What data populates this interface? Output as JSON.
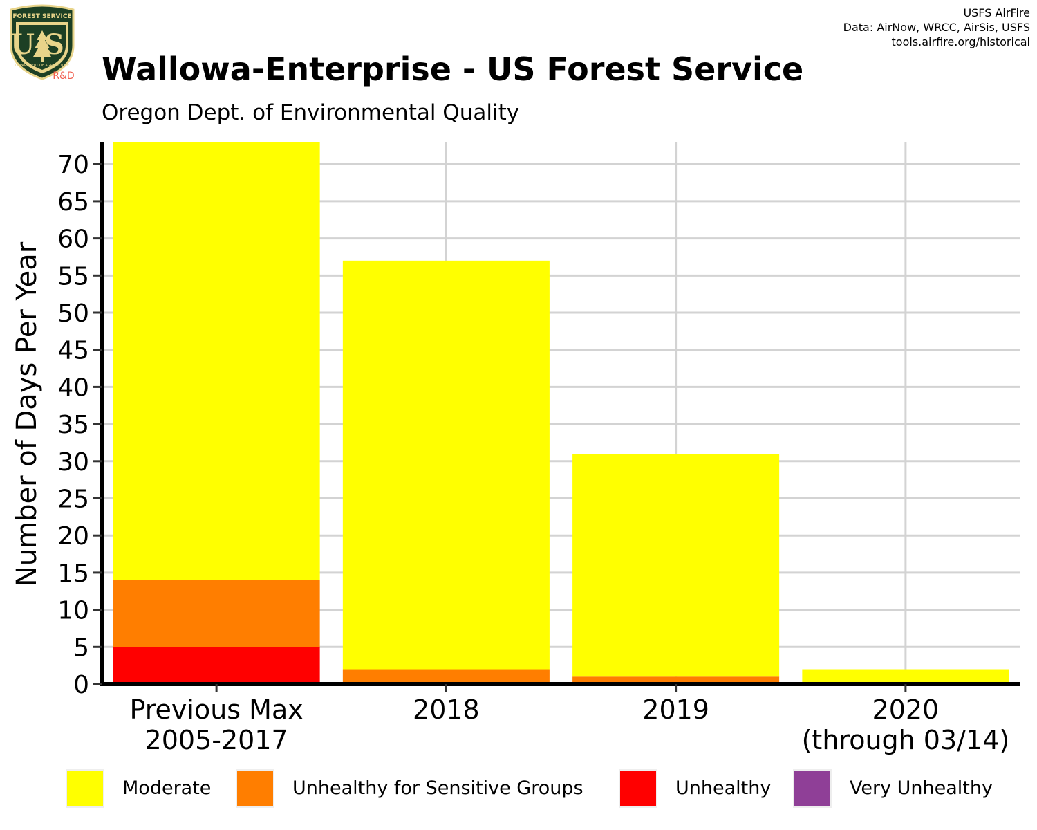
{
  "logo": {
    "top_text": "FOREST SERVICE",
    "letters": "US",
    "bottom_text": "DEPARTMENT OF AGRICULTURE",
    "tag": "R&D"
  },
  "credits": {
    "line1": "USFS AirFire",
    "line2": "Data: AirNow, WRCC, AirSis, USFS",
    "line3": "tools.airfire.org/historical"
  },
  "chart_data": {
    "type": "bar",
    "stacked": true,
    "title": "Wallowa-Enterprise - US Forest Service",
    "subtitle": "Oregon Dept. of Environmental Quality",
    "ylabel": "Number of Days Per Year",
    "xlabel": "",
    "categories": [
      [
        "Previous Max",
        "2005-2017"
      ],
      [
        "2018"
      ],
      [
        "2019"
      ],
      [
        "2020",
        "(through 03/14)"
      ]
    ],
    "ylim": [
      0,
      73
    ],
    "yticks": [
      0,
      5,
      10,
      15,
      20,
      25,
      30,
      35,
      40,
      45,
      50,
      55,
      60,
      65,
      70
    ],
    "grid": true,
    "legend_position": "bottom",
    "series": [
      {
        "name": "Unhealthy",
        "color": "#ff0000",
        "values": [
          5,
          0,
          0,
          0
        ]
      },
      {
        "name": "Unhealthy for Sensitive Groups",
        "color": "#ff7e00",
        "values": [
          9,
          2,
          1,
          0
        ]
      },
      {
        "name": "Moderate",
        "color": "#ffff00",
        "values": [
          59,
          55,
          30,
          2
        ]
      },
      {
        "name": "Very Unhealthy",
        "color": "#8f3f97",
        "values": [
          0,
          0,
          0,
          0
        ]
      }
    ],
    "legend": [
      {
        "name": "Moderate",
        "color": "#ffff00"
      },
      {
        "name": "Unhealthy for Sensitive Groups",
        "color": "#ff7e00"
      },
      {
        "name": "Unhealthy",
        "color": "#ff0000"
      },
      {
        "name": "Very Unhealthy",
        "color": "#8f3f97"
      }
    ]
  }
}
